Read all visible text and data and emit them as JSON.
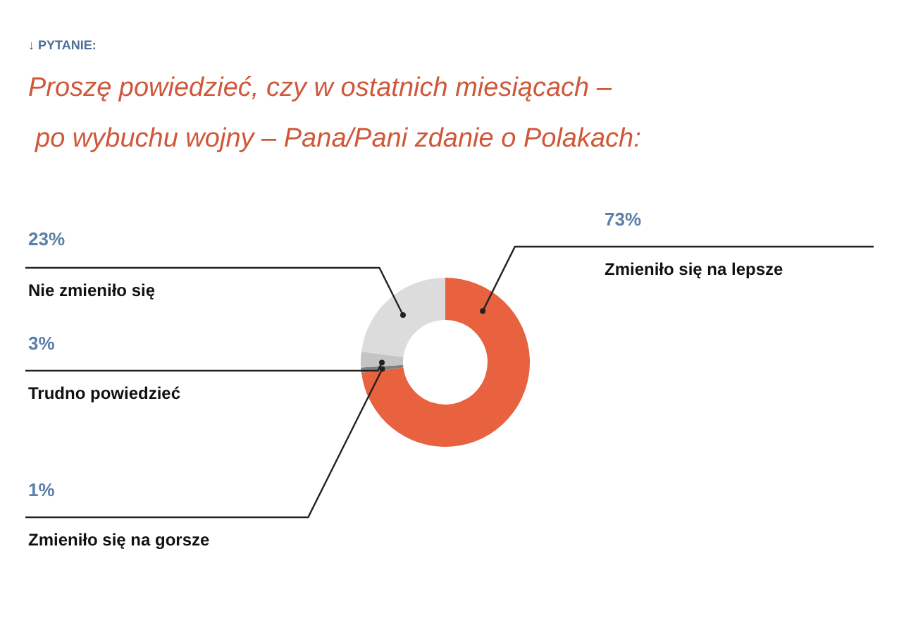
{
  "chart_data": {
    "type": "donut",
    "title": "↓ PYTANIE:",
    "subtitle": "Proszę powiedzieć, czy w ostatnich miesiącach –\npo wybuchu wojny – Pana/Pani zdanie o Polakach:",
    "categories": [
      "Zmieniło się na lepsze",
      "Zmieniło się na gorsze",
      "Trudno powiedzieć",
      "Nie zmieniło się"
    ],
    "values": [
      73,
      1,
      3,
      23
    ],
    "value_labels": [
      "73%",
      "1%",
      "3%",
      "23%"
    ],
    "colors": [
      "#e8623f",
      "#7f7f7f",
      "#c4c4c4",
      "#dcdcdc"
    ]
  }
}
